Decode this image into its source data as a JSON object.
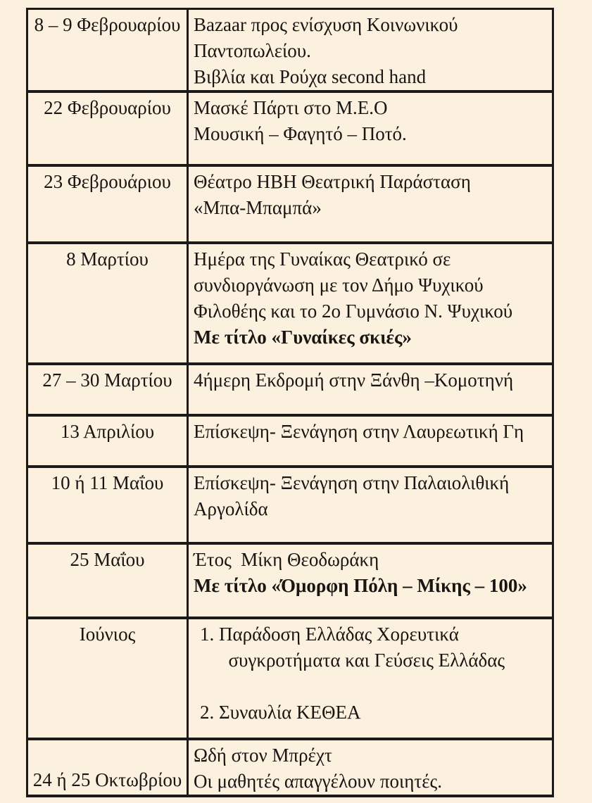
{
  "page": {
    "background": "#fcf1df",
    "line_color": "#1b1b1b",
    "text_color": "#181512"
  },
  "table": {
    "rows": [
      {
        "date": "8 – 9 Φεβρουαρίου",
        "lines": [
          {
            "text": "Bazaar προς ενίσχυση Κοινωνικού",
            "bold": false
          },
          {
            "text": "Παντοπωλείου.",
            "bold": false
          },
          {
            "text": "Βιβλία και Ρούχα second hand",
            "bold": false
          }
        ]
      },
      {
        "date": "22 Φεβρουαρίου",
        "lines": [
          {
            "text": "Μασκέ Πάρτι στο Μ.Ε.Ο",
            "bold": false
          },
          {
            "text": "Μουσική – Φαγητό – Ποτό.",
            "bold": false
          }
        ]
      },
      {
        "date": "23 Φεβρουάριου",
        "lines": [
          {
            "text": "Θέατρο ΗΒΗ Θεατρική Παράσταση",
            "bold": false
          },
          {
            "text": "«Μπα-Μπαμπά»",
            "bold": false
          }
        ]
      },
      {
        "date": "8 Μαρτίου",
        "lines": [
          {
            "text": "Ημέρα της Γυναίκας Θεατρικό σε",
            "bold": false
          },
          {
            "text": "συνδιοργάνωση με τον Δήμο Ψυχικού",
            "bold": false
          },
          {
            "text": "Φιλοθέης και το 2ο Γυμνάσιο Ν. Ψυχικού",
            "bold": false
          },
          {
            "text": "Με τίτλο «Γυναίκες σκιές»",
            "bold": true
          }
        ]
      },
      {
        "date": "27 – 30 Μαρτίου",
        "lines": [
          {
            "text": "4ήμερη Εκδρομή στην Ξάνθη –Κομοτηνή",
            "bold": false
          }
        ]
      },
      {
        "date": "13 Απριλίου",
        "lines": [
          {
            "text": "Επίσκεψη- Ξενάγηση στην Λαυρεωτική Γη",
            "bold": false
          }
        ]
      },
      {
        "date": "10 ή 11 Μαΐου",
        "lines": [
          {
            "text": "Επίσκεψη- Ξενάγηση στην Παλαιολιθική",
            "bold": false
          },
          {
            "text": "Αργολίδα",
            "bold": false
          }
        ]
      },
      {
        "date": "25 Μαΐου",
        "lines": [
          {
            "text": "Έτος  Μίκη Θεοδωράκη",
            "bold": false
          },
          {
            "text": "Με τίτλο «Όμορφη Πόλη – Μίκης – 100»",
            "bold": true
          }
        ]
      },
      {
        "date": "Ιούνιος",
        "lines": [
          {
            "text": "1. Παράδοση Ελλάδας Χορευτικά",
            "bold": false
          },
          {
            "text": "      συγκροτήματα και Γεύσεις Ελλάδας",
            "bold": false
          },
          {
            "text": "",
            "bold": false
          },
          {
            "text": "2. Συναυλία ΚΕΘΕΑ",
            "bold": false
          }
        ]
      },
      {
        "date": "24 ή 25 Οκτωβρίου",
        "lines": [
          {
            "text": "Ωδή στον Μπρέχτ",
            "bold": false
          },
          {
            "text": "Οι μαθητές απαγγέλουν ποιητές.",
            "bold": false
          }
        ]
      }
    ]
  }
}
